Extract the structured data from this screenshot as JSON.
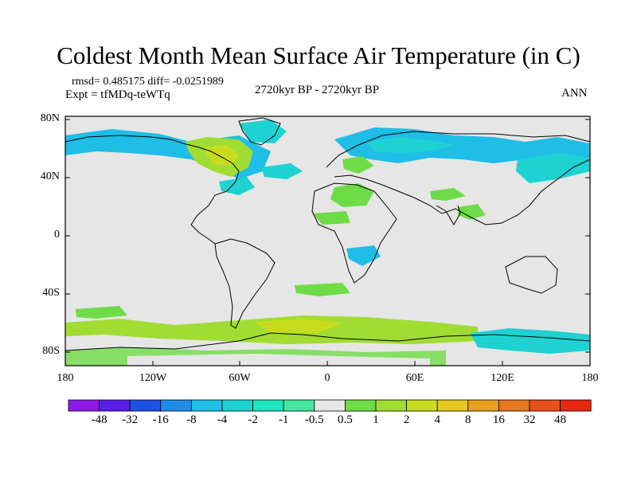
{
  "title": "Coldest Month Mean Surface Air Temperature (in C)",
  "stats": "rmsd= 0.485175 diff= -0.0251989",
  "experiment": "Expt = tfMDq-teWTq",
  "period": "2720kyr BP - 2720kyr BP",
  "season": "ANN",
  "lat_labels": [
    "80N",
    "40N",
    "0",
    "40S",
    "80S"
  ],
  "lon_labels": [
    "180",
    "120W",
    "60W",
    "0",
    "60E",
    "120E",
    "180"
  ],
  "colorbar": {
    "colors": [
      "#8c1ae6",
      "#5a1ee6",
      "#1e50e6",
      "#1e8ce6",
      "#1ebee6",
      "#1ed2d2",
      "#1ee6be",
      "#46e6a0",
      "#e6e6e6",
      "#6edc46",
      "#a0dc32",
      "#c8dc1e",
      "#e6c81e",
      "#e6a01e",
      "#e6781e",
      "#e6501e",
      "#e62814"
    ],
    "labels": [
      "-48",
      "-32",
      "-16",
      "-8",
      "-4",
      "-2",
      "-1",
      "-0.5",
      "0.5",
      "1",
      "2",
      "4",
      "8",
      "16",
      "32",
      "48"
    ]
  },
  "regions": [
    {
      "name": "north-america-warm",
      "color": "#a0dc32"
    },
    {
      "name": "north-america-cool",
      "color": "#1ebee6"
    },
    {
      "name": "eurasia-cool",
      "color": "#1ebee6"
    },
    {
      "name": "southern-ocean-warm",
      "color": "#a0dc32"
    },
    {
      "name": "antarctic-cool",
      "color": "#1ed2d2"
    }
  ]
}
